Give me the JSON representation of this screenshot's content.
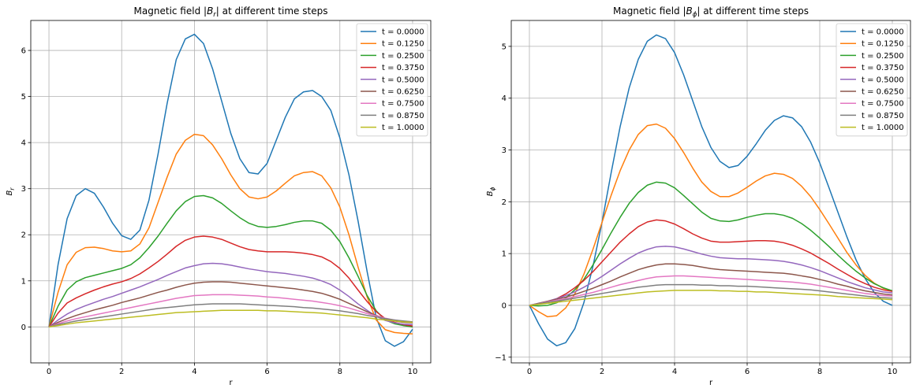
{
  "chart_data": [
    {
      "type": "line",
      "title": "Magnetic field |B_r| at different time steps",
      "title_parts": [
        "Magnetic field |",
        "B",
        "r",
        "| at different time steps"
      ],
      "xlabel": "r",
      "ylabel": "B_r",
      "ylabel_parts": [
        "B",
        "r"
      ],
      "xlim": [
        -0.5,
        10.5
      ],
      "ylim": [
        -0.78,
        6.65
      ],
      "xticks": [
        0,
        2,
        4,
        6,
        8,
        10
      ],
      "yticks": [
        0,
        1,
        2,
        3,
        4,
        5,
        6
      ],
      "grid": true,
      "legend": "top-right",
      "x": [
        0,
        0.25,
        0.5,
        0.75,
        1.0,
        1.25,
        1.5,
        1.75,
        2.0,
        2.25,
        2.5,
        2.75,
        3.0,
        3.25,
        3.5,
        3.75,
        4.0,
        4.25,
        4.5,
        4.75,
        5.0,
        5.25,
        5.5,
        5.75,
        6.0,
        6.25,
        6.5,
        6.75,
        7.0,
        7.25,
        7.5,
        7.75,
        8.0,
        8.25,
        8.5,
        8.75,
        9.0,
        9.25,
        9.5,
        9.75,
        10.0
      ],
      "series": [
        {
          "name": "t = 0.0000",
          "color": "#1f77b4",
          "values": [
            0,
            1.35,
            2.35,
            2.85,
            3.0,
            2.9,
            2.6,
            2.25,
            1.98,
            1.9,
            2.1,
            2.75,
            3.75,
            4.85,
            5.8,
            6.25,
            6.35,
            6.15,
            5.6,
            4.9,
            4.2,
            3.65,
            3.35,
            3.32,
            3.55,
            4.05,
            4.55,
            4.95,
            5.1,
            5.13,
            5.0,
            4.7,
            4.1,
            3.3,
            2.3,
            1.2,
            0.2,
            -0.3,
            -0.42,
            -0.32,
            -0.05
          ]
        },
        {
          "name": "t = 0.1250",
          "color": "#ff7f0e",
          "values": [
            0,
            0.75,
            1.35,
            1.62,
            1.72,
            1.73,
            1.7,
            1.65,
            1.63,
            1.65,
            1.8,
            2.15,
            2.7,
            3.25,
            3.75,
            4.05,
            4.18,
            4.15,
            3.95,
            3.65,
            3.3,
            3.0,
            2.82,
            2.78,
            2.82,
            2.95,
            3.12,
            3.28,
            3.35,
            3.37,
            3.28,
            3.02,
            2.6,
            2.0,
            1.3,
            0.65,
            0.15,
            -0.06,
            -0.12,
            -0.14,
            -0.15
          ]
        },
        {
          "name": "t = 0.2500",
          "color": "#2ca02c",
          "values": [
            0,
            0.45,
            0.8,
            0.98,
            1.07,
            1.12,
            1.17,
            1.22,
            1.27,
            1.35,
            1.5,
            1.72,
            1.97,
            2.25,
            2.52,
            2.72,
            2.83,
            2.85,
            2.8,
            2.68,
            2.52,
            2.37,
            2.25,
            2.18,
            2.16,
            2.18,
            2.22,
            2.27,
            2.3,
            2.3,
            2.25,
            2.1,
            1.85,
            1.5,
            1.1,
            0.68,
            0.35,
            0.15,
            0.07,
            0.03,
            0
          ]
        },
        {
          "name": "t = 0.3750",
          "color": "#d62728",
          "values": [
            0,
            0.3,
            0.52,
            0.63,
            0.72,
            0.8,
            0.87,
            0.93,
            0.98,
            1.05,
            1.15,
            1.28,
            1.42,
            1.58,
            1.75,
            1.88,
            1.95,
            1.97,
            1.95,
            1.9,
            1.82,
            1.74,
            1.68,
            1.65,
            1.63,
            1.63,
            1.63,
            1.62,
            1.6,
            1.57,
            1.52,
            1.42,
            1.27,
            1.06,
            0.8,
            0.55,
            0.33,
            0.18,
            0.1,
            0.05,
            0.02
          ]
        },
        {
          "name": "t = 0.5000",
          "color": "#9467bd",
          "values": [
            0,
            0.15,
            0.28,
            0.38,
            0.46,
            0.53,
            0.6,
            0.66,
            0.73,
            0.8,
            0.87,
            0.95,
            1.03,
            1.12,
            1.2,
            1.28,
            1.33,
            1.37,
            1.38,
            1.37,
            1.34,
            1.3,
            1.26,
            1.23,
            1.2,
            1.18,
            1.16,
            1.13,
            1.1,
            1.06,
            1.0,
            0.92,
            0.8,
            0.66,
            0.5,
            0.36,
            0.23,
            0.14,
            0.09,
            0.06,
            0.05
          ]
        },
        {
          "name": "t = 0.6250",
          "color": "#8c564b",
          "values": [
            0,
            0.1,
            0.18,
            0.25,
            0.31,
            0.37,
            0.42,
            0.47,
            0.53,
            0.58,
            0.63,
            0.69,
            0.75,
            0.8,
            0.86,
            0.91,
            0.95,
            0.97,
            0.98,
            0.98,
            0.97,
            0.95,
            0.93,
            0.91,
            0.89,
            0.87,
            0.85,
            0.83,
            0.8,
            0.77,
            0.73,
            0.67,
            0.6,
            0.51,
            0.42,
            0.33,
            0.25,
            0.18,
            0.13,
            0.1,
            0.09
          ]
        },
        {
          "name": "t = 0.7500",
          "color": "#e377c2",
          "values": [
            0,
            0.07,
            0.13,
            0.18,
            0.22,
            0.26,
            0.3,
            0.34,
            0.38,
            0.42,
            0.46,
            0.5,
            0.54,
            0.58,
            0.62,
            0.65,
            0.68,
            0.69,
            0.7,
            0.7,
            0.7,
            0.69,
            0.68,
            0.67,
            0.65,
            0.64,
            0.62,
            0.6,
            0.58,
            0.56,
            0.53,
            0.5,
            0.46,
            0.41,
            0.35,
            0.29,
            0.24,
            0.19,
            0.15,
            0.12,
            0.11
          ]
        },
        {
          "name": "t = 0.8750",
          "color": "#7f7f7f",
          "values": [
            0,
            0.05,
            0.09,
            0.13,
            0.16,
            0.19,
            0.22,
            0.25,
            0.28,
            0.31,
            0.34,
            0.37,
            0.4,
            0.42,
            0.44,
            0.46,
            0.48,
            0.49,
            0.5,
            0.5,
            0.5,
            0.5,
            0.49,
            0.48,
            0.47,
            0.46,
            0.45,
            0.44,
            0.42,
            0.41,
            0.39,
            0.37,
            0.35,
            0.32,
            0.29,
            0.25,
            0.22,
            0.18,
            0.15,
            0.13,
            0.11
          ]
        },
        {
          "name": "t = 1.0000",
          "color": "#bcbd22",
          "values": [
            0,
            0.03,
            0.06,
            0.09,
            0.11,
            0.13,
            0.15,
            0.17,
            0.19,
            0.21,
            0.23,
            0.25,
            0.27,
            0.29,
            0.31,
            0.32,
            0.33,
            0.34,
            0.35,
            0.36,
            0.36,
            0.36,
            0.36,
            0.36,
            0.35,
            0.35,
            0.34,
            0.33,
            0.32,
            0.31,
            0.3,
            0.28,
            0.26,
            0.24,
            0.22,
            0.2,
            0.17,
            0.15,
            0.13,
            0.11,
            0.1
          ]
        }
      ]
    },
    {
      "type": "line",
      "title": "Magnetic field |B_ϕ| at different time steps",
      "title_parts": [
        "Magnetic field |",
        "B",
        "ϕ",
        "| at different time steps"
      ],
      "xlabel": "r",
      "ylabel": "B_ϕ",
      "ylabel_parts": [
        "B",
        "ϕ"
      ],
      "xlim": [
        -0.5,
        10.5
      ],
      "ylim": [
        -1.11,
        5.5
      ],
      "xticks": [
        0,
        2,
        4,
        6,
        8,
        10
      ],
      "yticks": [
        -1,
        0,
        1,
        2,
        3,
        4,
        5
      ],
      "grid": true,
      "legend": "top-right",
      "x": [
        0,
        0.25,
        0.5,
        0.75,
        1.0,
        1.25,
        1.5,
        1.75,
        2.0,
        2.25,
        2.5,
        2.75,
        3.0,
        3.25,
        3.5,
        3.75,
        4.0,
        4.25,
        4.5,
        4.75,
        5.0,
        5.25,
        5.5,
        5.75,
        6.0,
        6.25,
        6.5,
        6.75,
        7.0,
        7.25,
        7.5,
        7.75,
        8.0,
        8.25,
        8.5,
        8.75,
        9.0,
        9.25,
        9.5,
        9.75,
        10.0
      ],
      "series": [
        {
          "name": "t = 0.0000",
          "color": "#1f77b4",
          "values": [
            0,
            -0.35,
            -0.65,
            -0.78,
            -0.72,
            -0.45,
            0.05,
            0.75,
            1.6,
            2.55,
            3.45,
            4.2,
            4.75,
            5.1,
            5.22,
            5.15,
            4.88,
            4.45,
            3.95,
            3.45,
            3.05,
            2.78,
            2.66,
            2.7,
            2.88,
            3.12,
            3.38,
            3.57,
            3.66,
            3.62,
            3.45,
            3.15,
            2.75,
            2.28,
            1.8,
            1.32,
            0.88,
            0.52,
            0.25,
            0.08,
            0.0
          ]
        },
        {
          "name": "t = 0.1250",
          "color": "#ff7f0e",
          "values": [
            0,
            -0.12,
            -0.22,
            -0.2,
            -0.05,
            0.22,
            0.6,
            1.08,
            1.6,
            2.12,
            2.6,
            3.0,
            3.3,
            3.47,
            3.5,
            3.42,
            3.22,
            2.95,
            2.65,
            2.38,
            2.2,
            2.1,
            2.1,
            2.17,
            2.28,
            2.4,
            2.5,
            2.55,
            2.53,
            2.45,
            2.3,
            2.1,
            1.85,
            1.58,
            1.3,
            1.02,
            0.78,
            0.58,
            0.43,
            0.33,
            0.28
          ]
        },
        {
          "name": "t = 0.2500",
          "color": "#2ca02c",
          "values": [
            0,
            -0.01,
            0.0,
            0.05,
            0.14,
            0.3,
            0.5,
            0.78,
            1.08,
            1.4,
            1.7,
            1.97,
            2.18,
            2.32,
            2.38,
            2.36,
            2.27,
            2.12,
            1.96,
            1.8,
            1.68,
            1.63,
            1.62,
            1.65,
            1.7,
            1.74,
            1.77,
            1.77,
            1.74,
            1.68,
            1.58,
            1.45,
            1.3,
            1.14,
            0.97,
            0.81,
            0.66,
            0.53,
            0.42,
            0.34,
            0.28
          ]
        },
        {
          "name": "t = 0.3750",
          "color": "#d62728",
          "values": [
            0,
            0.03,
            0.07,
            0.13,
            0.22,
            0.34,
            0.48,
            0.65,
            0.84,
            1.03,
            1.22,
            1.38,
            1.52,
            1.61,
            1.65,
            1.63,
            1.57,
            1.48,
            1.38,
            1.3,
            1.24,
            1.22,
            1.22,
            1.23,
            1.24,
            1.25,
            1.25,
            1.24,
            1.21,
            1.16,
            1.09,
            1.01,
            0.91,
            0.81,
            0.7,
            0.6,
            0.5,
            0.42,
            0.35,
            0.3,
            0.27
          ]
        },
        {
          "name": "t = 0.5000",
          "color": "#9467bd",
          "values": [
            0,
            0.04,
            0.08,
            0.13,
            0.19,
            0.26,
            0.35,
            0.45,
            0.56,
            0.68,
            0.8,
            0.91,
            1.01,
            1.08,
            1.13,
            1.14,
            1.13,
            1.09,
            1.04,
            0.99,
            0.95,
            0.92,
            0.91,
            0.9,
            0.9,
            0.89,
            0.88,
            0.87,
            0.85,
            0.82,
            0.78,
            0.73,
            0.67,
            0.6,
            0.53,
            0.46,
            0.4,
            0.34,
            0.3,
            0.26,
            0.24
          ]
        },
        {
          "name": "t = 0.6250",
          "color": "#8c564b",
          "values": [
            0,
            0.04,
            0.08,
            0.12,
            0.16,
            0.21,
            0.27,
            0.33,
            0.4,
            0.47,
            0.55,
            0.62,
            0.69,
            0.74,
            0.78,
            0.8,
            0.8,
            0.79,
            0.77,
            0.74,
            0.71,
            0.69,
            0.68,
            0.67,
            0.66,
            0.65,
            0.64,
            0.63,
            0.62,
            0.6,
            0.57,
            0.54,
            0.5,
            0.46,
            0.41,
            0.37,
            0.32,
            0.28,
            0.25,
            0.22,
            0.2
          ]
        },
        {
          "name": "t = 0.7500",
          "color": "#e377c2",
          "values": [
            0,
            0.03,
            0.07,
            0.1,
            0.13,
            0.17,
            0.21,
            0.25,
            0.3,
            0.35,
            0.4,
            0.44,
            0.48,
            0.52,
            0.55,
            0.56,
            0.57,
            0.57,
            0.56,
            0.55,
            0.54,
            0.53,
            0.52,
            0.51,
            0.5,
            0.49,
            0.48,
            0.47,
            0.46,
            0.45,
            0.43,
            0.41,
            0.38,
            0.35,
            0.32,
            0.29,
            0.26,
            0.23,
            0.21,
            0.19,
            0.18
          ]
        },
        {
          "name": "t = 0.8750",
          "color": "#7f7f7f",
          "values": [
            0,
            0.03,
            0.06,
            0.08,
            0.11,
            0.14,
            0.17,
            0.2,
            0.23,
            0.26,
            0.29,
            0.32,
            0.35,
            0.37,
            0.39,
            0.4,
            0.4,
            0.4,
            0.4,
            0.39,
            0.39,
            0.38,
            0.38,
            0.37,
            0.37,
            0.36,
            0.35,
            0.34,
            0.33,
            0.32,
            0.31,
            0.3,
            0.28,
            0.26,
            0.24,
            0.22,
            0.2,
            0.18,
            0.16,
            0.15,
            0.14
          ]
        },
        {
          "name": "t = 1.0000",
          "color": "#bcbd22",
          "values": [
            0,
            0.02,
            0.04,
            0.06,
            0.08,
            0.1,
            0.12,
            0.14,
            0.16,
            0.18,
            0.2,
            0.22,
            0.24,
            0.26,
            0.27,
            0.28,
            0.29,
            0.29,
            0.29,
            0.29,
            0.29,
            0.28,
            0.28,
            0.27,
            0.27,
            0.26,
            0.26,
            0.25,
            0.24,
            0.23,
            0.22,
            0.21,
            0.2,
            0.19,
            0.17,
            0.16,
            0.15,
            0.14,
            0.13,
            0.12,
            0.11
          ]
        }
      ]
    }
  ]
}
